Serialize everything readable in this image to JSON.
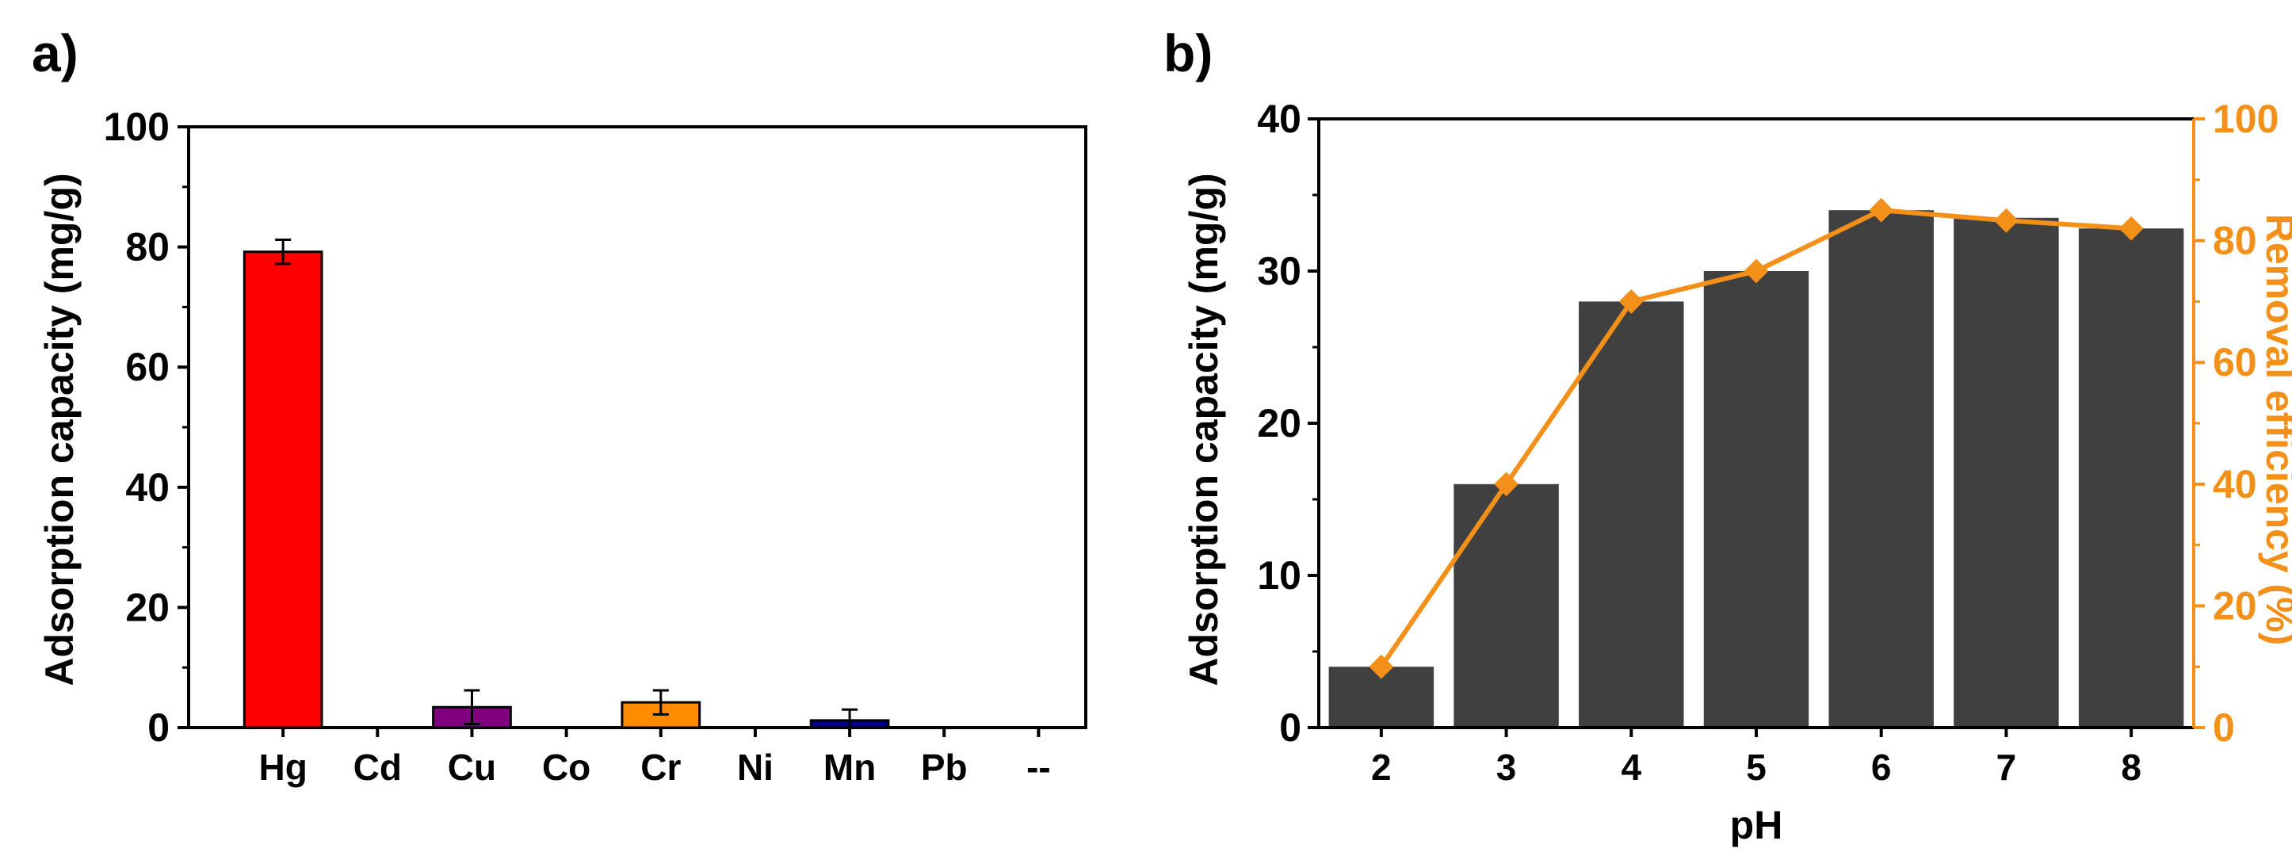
{
  "chart_data": [
    {
      "panel_label": "a)",
      "type": "bar",
      "categories": [
        "Hg",
        "Cd",
        "Cu",
        "Co",
        "Cr",
        "Ni",
        "Mn",
        "Pb",
        "--"
      ],
      "values": [
        79.2,
        0,
        3.4,
        0,
        4.2,
        0,
        1.2,
        0,
        0
      ],
      "errors": [
        2.0,
        0,
        2.8,
        0,
        2.0,
        0,
        1.8,
        0,
        0
      ],
      "colors": [
        "#ff0000",
        "#800080",
        "#800080",
        "#ff8c00",
        "#ff8c00",
        "#00008b",
        "#00008b",
        "#000000",
        "#000000"
      ],
      "ylabel": "Adsorption capacity (mg/g)",
      "xlabel": "",
      "ylim": [
        0,
        100
      ],
      "yticks": [
        0,
        20,
        40,
        60,
        80,
        100
      ]
    },
    {
      "panel_label": "b)",
      "type": "bar+line",
      "categories": [
        "2",
        "3",
        "4",
        "5",
        "6",
        "7",
        "8"
      ],
      "series": [
        {
          "name": "Adsorption capacity",
          "axis": "left",
          "kind": "bar",
          "color": "#404040",
          "values": [
            4,
            16,
            28,
            30,
            34,
            33.5,
            32.8
          ]
        },
        {
          "name": "Removal efficiency",
          "axis": "right",
          "kind": "line",
          "color": "#f39019",
          "values": [
            10,
            40,
            70,
            75,
            85,
            83.3,
            82
          ]
        }
      ],
      "xlabel": "pH",
      "ylabel": "Adsorption capacity (mg/g)",
      "y2label": "Removal efficiency (%)",
      "ylim": [
        0,
        40
      ],
      "yticks": [
        0,
        10,
        20,
        30,
        40
      ],
      "y2lim": [
        0,
        100
      ],
      "y2ticks": [
        0,
        20,
        40,
        60,
        80,
        100
      ]
    }
  ]
}
